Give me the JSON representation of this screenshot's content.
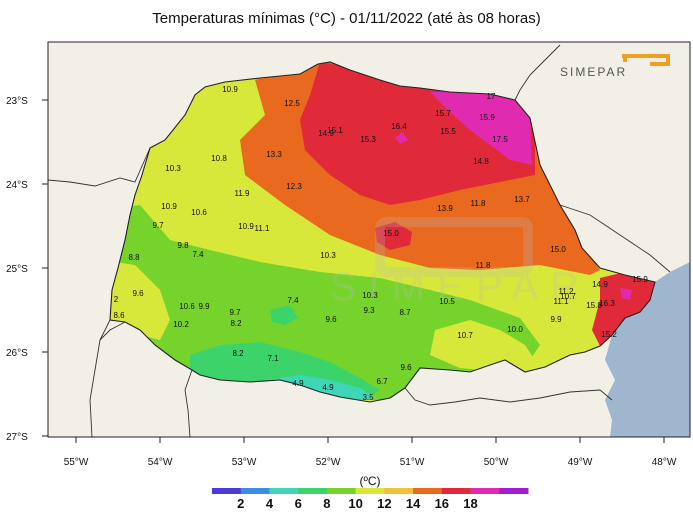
{
  "title": "Temperaturas mínimas (°C) - 01/11/2022 (até às 08 horas)",
  "logo_text": "SIMEPAR",
  "watermark_text": "SIMEPAR",
  "axes": {
    "lat_labels": [
      "23°S",
      "24°S",
      "25°S",
      "26°S",
      "27°S"
    ],
    "lon_labels": [
      "55°W",
      "54°W",
      "53°W",
      "52°W",
      "51°W",
      "50°W",
      "49°W",
      "48°W"
    ]
  },
  "legend": {
    "unit": "(ºC)",
    "ticks": [
      "2",
      "4",
      "6",
      "8",
      "10",
      "12",
      "14",
      "16",
      "18"
    ],
    "colors": [
      "#4a3bd6",
      "#3d8de0",
      "#3fd6b8",
      "#3cd46a",
      "#76d32c",
      "#d8e83a",
      "#f0c23a",
      "#e9691e",
      "#e02a3a",
      "#e02ab0",
      "#a01ed0"
    ]
  },
  "colors": {
    "ocean": "#9fb6cf",
    "land_bg": "#f1efe6",
    "border": "#333333"
  },
  "stations": [
    {
      "v": "10.9"
    },
    {
      "v": "12.5"
    },
    {
      "v": "17"
    },
    {
      "v": "15.7"
    },
    {
      "v": "15.9"
    },
    {
      "v": "15.1"
    },
    {
      "v": "14.9"
    },
    {
      "v": "16.4"
    },
    {
      "v": "15.5"
    },
    {
      "v": "17.5"
    },
    {
      "v": "15.3"
    },
    {
      "v": "13.3"
    },
    {
      "v": "10.8"
    },
    {
      "v": "10.3"
    },
    {
      "v": "14.8"
    },
    {
      "v": "12.3"
    },
    {
      "v": "11.9"
    },
    {
      "v": "13.9"
    },
    {
      "v": "11.8"
    },
    {
      "v": "13.7"
    },
    {
      "v": "10.9"
    },
    {
      "v": "10.6"
    },
    {
      "v": "9.7"
    },
    {
      "v": "10.9"
    },
    {
      "v": "11.1"
    },
    {
      "v": "15.0"
    },
    {
      "v": "9.8"
    },
    {
      "v": "7.4"
    },
    {
      "v": "15.0"
    },
    {
      "v": "8.8"
    },
    {
      "v": "10.3"
    },
    {
      "v": "11.8"
    },
    {
      "v": "9.6"
    },
    {
      "v": "11.2"
    },
    {
      "v": "14.9"
    },
    {
      "v": "10.7"
    },
    {
      "v": "15.9"
    },
    {
      "v": "10.3"
    },
    {
      "v": "7.4"
    },
    {
      "v": "10.5"
    },
    {
      "v": "11.1"
    },
    {
      "v": "15.8"
    },
    {
      "v": "2"
    },
    {
      "v": "10.6"
    },
    {
      "v": "9.9"
    },
    {
      "v": "16.3"
    },
    {
      "v": "8.6"
    },
    {
      "v": "9.7"
    },
    {
      "v": "9.3"
    },
    {
      "v": "8.7"
    },
    {
      "v": "10.2"
    },
    {
      "v": "8.2"
    },
    {
      "v": "9.6"
    },
    {
      "v": "9.9"
    },
    {
      "v": "10.0"
    },
    {
      "v": "15.2"
    },
    {
      "v": "10.7"
    },
    {
      "v": "8.2"
    },
    {
      "v": "7.1"
    },
    {
      "v": "9.6"
    },
    {
      "v": "6.7"
    },
    {
      "v": "4.9"
    },
    {
      "v": "4.9"
    },
    {
      "v": "3.5"
    }
  ]
}
